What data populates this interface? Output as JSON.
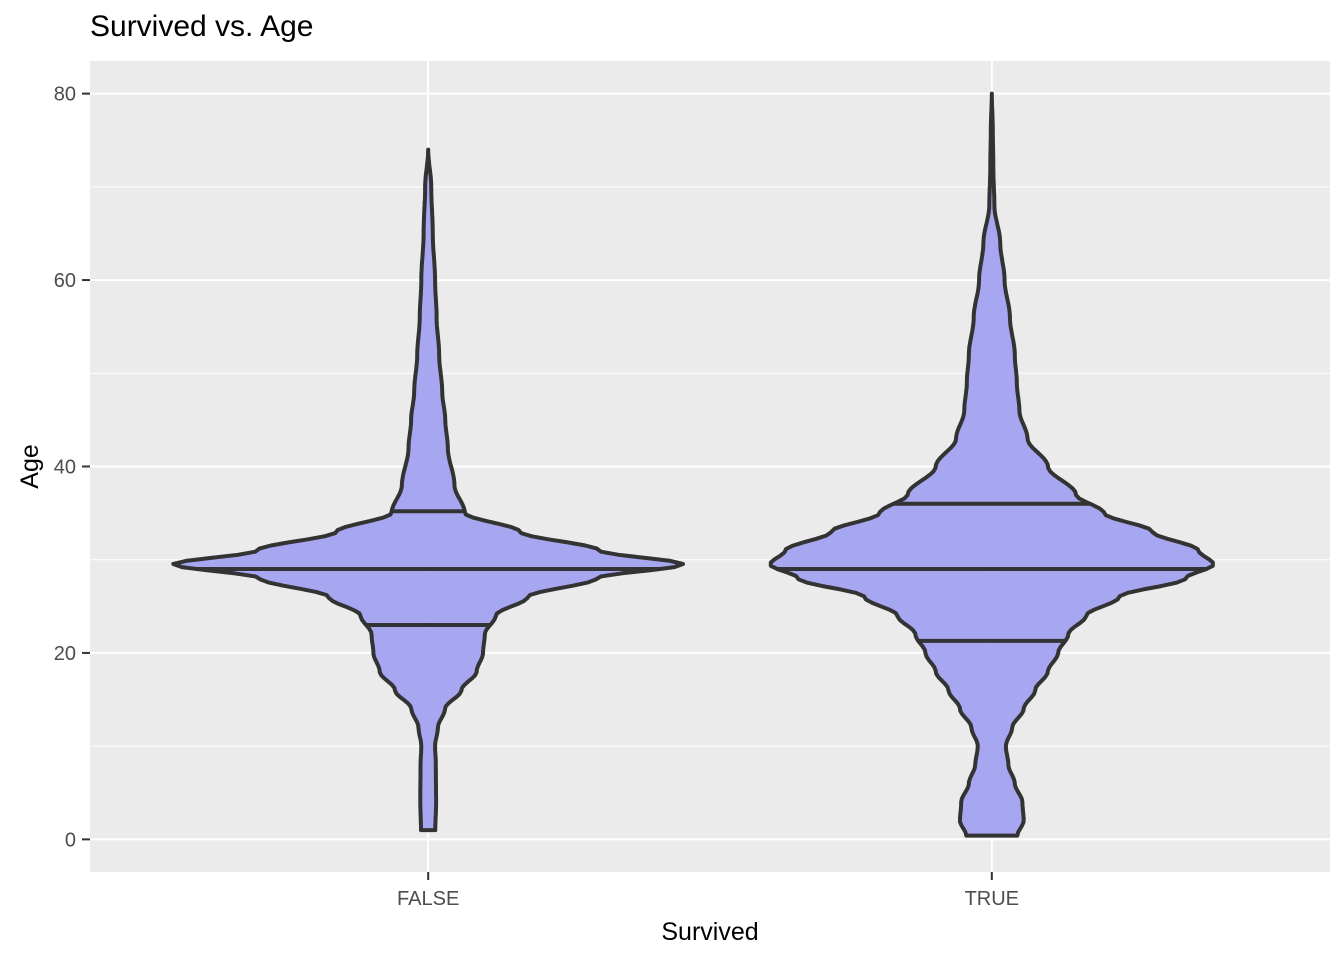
{
  "title": "Survived vs. Age",
  "chart_data": {
    "type": "violin",
    "title": "Survived vs. Age",
    "xlabel": "Survived",
    "ylabel": "Age",
    "categories": [
      "FALSE",
      "TRUE"
    ],
    "ylim": [
      -3.5,
      83.5
    ],
    "yticks": [
      0,
      20,
      40,
      60,
      80
    ],
    "grid": true,
    "fill_color": "#a3a3f1",
    "outline_color": "#333333",
    "panel_color": "#ebebeb",
    "violins": [
      {
        "category": "FALSE",
        "min": 1,
        "max": 74,
        "quantiles": [
          23,
          29,
          35.2
        ],
        "density_profile": [
          [
            1,
            0.028
          ],
          [
            4,
            0.031
          ],
          [
            8,
            0.03
          ],
          [
            10,
            0.027
          ],
          [
            12,
            0.038
          ],
          [
            14,
            0.066
          ],
          [
            16,
            0.13
          ],
          [
            18,
            0.19
          ],
          [
            20,
            0.215
          ],
          [
            22,
            0.222
          ],
          [
            24,
            0.265
          ],
          [
            26,
            0.39
          ],
          [
            28,
            0.66
          ],
          [
            29.5,
            1.0
          ],
          [
            31,
            0.67
          ],
          [
            33,
            0.36
          ],
          [
            35,
            0.144
          ],
          [
            38,
            0.103
          ],
          [
            42,
            0.077
          ],
          [
            45,
            0.067
          ],
          [
            48,
            0.055
          ],
          [
            52,
            0.043
          ],
          [
            56,
            0.033
          ],
          [
            60,
            0.027
          ],
          [
            65,
            0.018
          ],
          [
            70,
            0.012
          ],
          [
            74,
            0.0
          ]
        ]
      },
      {
        "category": "TRUE",
        "min": 0.4,
        "max": 80,
        "quantiles": [
          21.3,
          29,
          36
        ],
        "density_profile": [
          [
            0.4,
            0.1
          ],
          [
            2,
            0.125
          ],
          [
            4,
            0.12
          ],
          [
            6,
            0.09
          ],
          [
            8,
            0.065
          ],
          [
            10,
            0.055
          ],
          [
            12,
            0.08
          ],
          [
            14,
            0.125
          ],
          [
            16,
            0.17
          ],
          [
            18,
            0.22
          ],
          [
            20,
            0.26
          ],
          [
            22,
            0.3
          ],
          [
            24,
            0.37
          ],
          [
            26,
            0.5
          ],
          [
            28,
            0.76
          ],
          [
            29.5,
            0.87
          ],
          [
            31,
            0.81
          ],
          [
            33,
            0.63
          ],
          [
            35,
            0.44
          ],
          [
            37,
            0.33
          ],
          [
            40,
            0.22
          ],
          [
            43,
            0.14
          ],
          [
            46,
            0.108
          ],
          [
            49,
            0.098
          ],
          [
            52,
            0.09
          ],
          [
            56,
            0.071
          ],
          [
            60,
            0.05
          ],
          [
            64,
            0.033
          ],
          [
            68,
            0.01
          ],
          [
            72,
            0.006
          ],
          [
            76,
            0.004
          ],
          [
            80,
            0.0
          ]
        ]
      }
    ]
  }
}
